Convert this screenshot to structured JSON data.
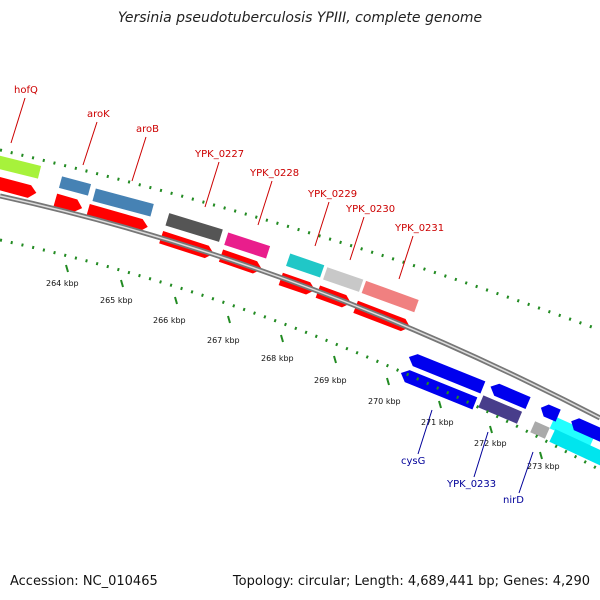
{
  "title": "Yersinia pseudotuberculosis YPIII, complete genome",
  "footer": {
    "accession": "Accession: NC_010465",
    "stats": "Topology: circular; Length: 4,689,441 bp; Genes: 4,290"
  },
  "colors": {
    "forward_label": "#cc0000",
    "reverse_label": "#000099",
    "cds": "#ff0000",
    "backbone": "#888888",
    "dots": "#228b22"
  },
  "ticks": [
    "264 kbp",
    "265 kbp",
    "266 kbp",
    "267 kbp",
    "268 kbp",
    "269 kbp",
    "270 kbp",
    "271 kbp",
    "272 kbp",
    "273 kbp"
  ],
  "forward_genes": [
    "hofQ",
    "aroK",
    "aroB",
    "YPK_0227",
    "YPK_0228",
    "YPK_0229",
    "YPK_0230",
    "YPK_0231"
  ],
  "reverse_genes": [
    "cysG",
    "YPK_0233",
    "nirD"
  ]
}
